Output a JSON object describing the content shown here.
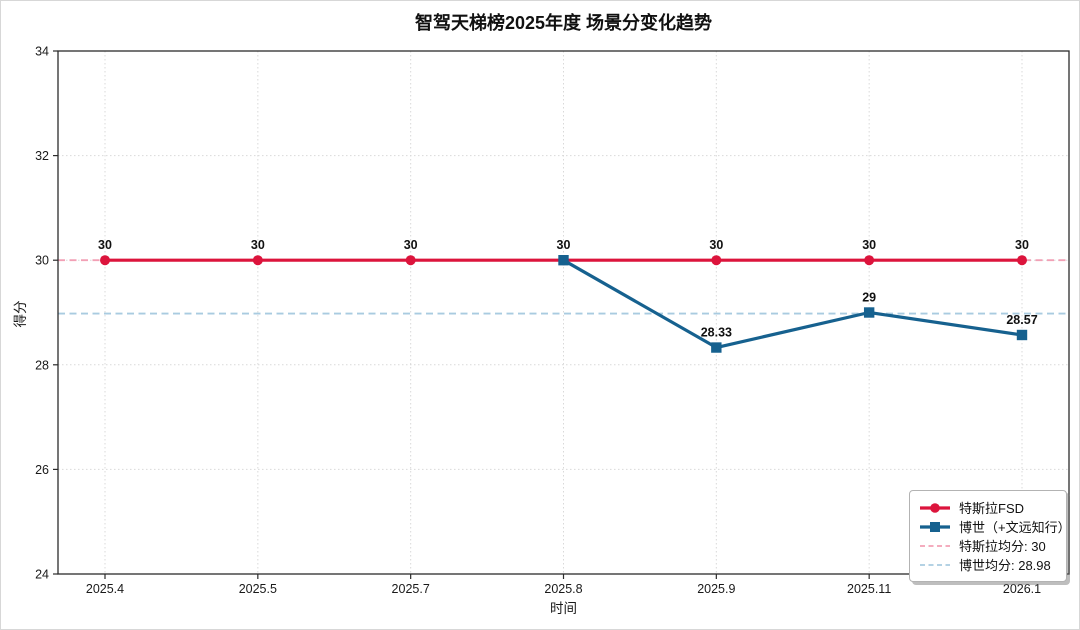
{
  "title": "智驾天梯榜2025年度 场景分变化趋势",
  "chart_data": {
    "type": "line",
    "title": "智驾天梯榜2025年度 场景分变化趋势",
    "xlabel": "时间",
    "ylabel": "得分",
    "x_categories": [
      "2025.4",
      "2025.5",
      "2025.7",
      "2025.8",
      "2025.9",
      "2025.11",
      "2026.1"
    ],
    "ylim": [
      24,
      34
    ],
    "yticks": [
      24,
      26,
      28,
      30,
      32,
      34
    ],
    "grid": true,
    "legend_position": "lower right",
    "series": [
      {
        "name": "特斯拉FSD",
        "color": "#dc143c",
        "marker": "circle",
        "values": [
          30,
          30,
          30,
          30,
          30,
          30,
          30
        ],
        "point_labels": [
          "30",
          "30",
          "30",
          "30",
          "30",
          "30",
          "30"
        ]
      },
      {
        "name": "博世（+文远知行）",
        "color": "#16618f",
        "marker": "square",
        "values": [
          null,
          null,
          null,
          30,
          28.33,
          29,
          28.57
        ],
        "point_labels": [
          null,
          null,
          null,
          null,
          "28.33",
          "29",
          "28.57"
        ]
      }
    ],
    "mean_lines": [
      {
        "name": "特斯拉均分: 30",
        "value": 30,
        "color": "#f2a0b5"
      },
      {
        "name": "博世均分: 28.98",
        "value": 28.98,
        "color": "#a9cbe0"
      }
    ]
  },
  "legend": {
    "items": [
      {
        "label": "特斯拉FSD",
        "type": "solid",
        "color": "#dc143c",
        "marker": "circle"
      },
      {
        "label": "博世（+文远知行）",
        "type": "solid",
        "color": "#16618f",
        "marker": "square"
      },
      {
        "label": "特斯拉均分: 30",
        "type": "dashed",
        "color": "#f2a0b5",
        "marker": "none"
      },
      {
        "label": "博世均分: 28.98",
        "type": "dashed",
        "color": "#a9cbe0",
        "marker": "none"
      }
    ]
  },
  "style": {
    "spine_color": "#2b2b2b",
    "grid_color": "#d9d9d9",
    "tick_label_color": "#1a1a1a",
    "point_label_color": "#111111"
  }
}
